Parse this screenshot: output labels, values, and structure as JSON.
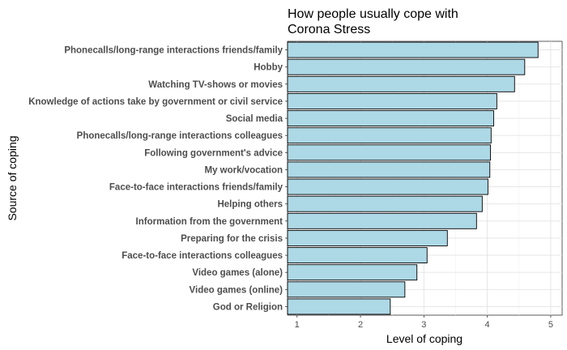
{
  "chart_data": {
    "type": "bar",
    "orientation": "horizontal",
    "title_lines": [
      "How people usually cope with",
      "Corona Stress"
    ],
    "xlabel": "Level of coping",
    "ylabel": "Source of coping",
    "categories": [
      "Phonecalls/long-range interactions friends/family",
      "Hobby",
      "Watching TV-shows or movies",
      "Knowledge of actions take by government or civil service",
      "Social media",
      "Phonecalls/long-range interactions colleagues",
      "Following government's advice",
      "My work/vocation",
      "Face-to-face interactions friends/family",
      "Helping others",
      "Information from the government",
      "Preparing for the crisis",
      "Face-to-face interactions colleagues",
      "Video games (alone)",
      "Video games (online)",
      "God or Religion"
    ],
    "values": [
      4.8,
      4.59,
      4.43,
      4.15,
      4.1,
      4.06,
      4.05,
      4.04,
      4.01,
      3.92,
      3.83,
      3.37,
      3.05,
      2.89,
      2.7,
      2.47
    ],
    "xlim": [
      0.85,
      5.18
    ],
    "x_ticks": [
      1,
      2,
      3,
      4,
      5
    ],
    "grid": true,
    "bar_color": "#add8e6",
    "bar_border_color": "#000000",
    "legend": "none"
  }
}
